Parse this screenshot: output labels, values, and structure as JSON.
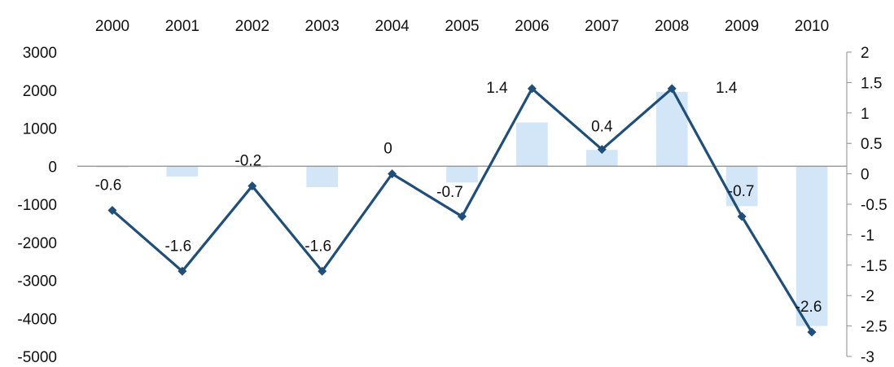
{
  "chart_data": {
    "type": "bar",
    "categories": [
      "2000",
      "2001",
      "2002",
      "2003",
      "2004",
      "2005",
      "2006",
      "2007",
      "2008",
      "2009",
      "2010"
    ],
    "x_axis_position": "top",
    "y_left": {
      "ylim": [
        -5000,
        3000
      ],
      "ticks": [
        3000,
        2000,
        1000,
        0,
        -1000,
        -2000,
        -3000,
        -4000,
        -5000
      ]
    },
    "y_right": {
      "ylim": [
        -3,
        2
      ],
      "ticks": [
        "2",
        "1.5",
        "1",
        "0.5",
        "0",
        "-0.5",
        "-1",
        "-1.5",
        "-2",
        "-2.5",
        "-3"
      ]
    },
    "series": [
      {
        "type": "bar",
        "axis": "left",
        "color": "#d3e6f8",
        "values": [
          -30,
          -270,
          -30,
          -550,
          -20,
          -430,
          1150,
          430,
          1950,
          -1050,
          -4200
        ]
      },
      {
        "type": "line",
        "axis": "right",
        "color": "#1f4e79",
        "marker": "diamond",
        "values": [
          -0.6,
          -1.6,
          -0.2,
          -1.6,
          0,
          -0.7,
          1.4,
          0.4,
          1.4,
          -0.7,
          -2.6
        ],
        "labels": [
          "-0.6",
          "-1.6",
          "-0.2",
          "-1.6",
          "0",
          "-0.7",
          "1.4",
          "0.4",
          "1.4",
          "-0.7",
          "-2.6"
        ]
      }
    ],
    "grid": false,
    "legend": "none",
    "title": "",
    "xlabel": "",
    "ylabel": ""
  }
}
